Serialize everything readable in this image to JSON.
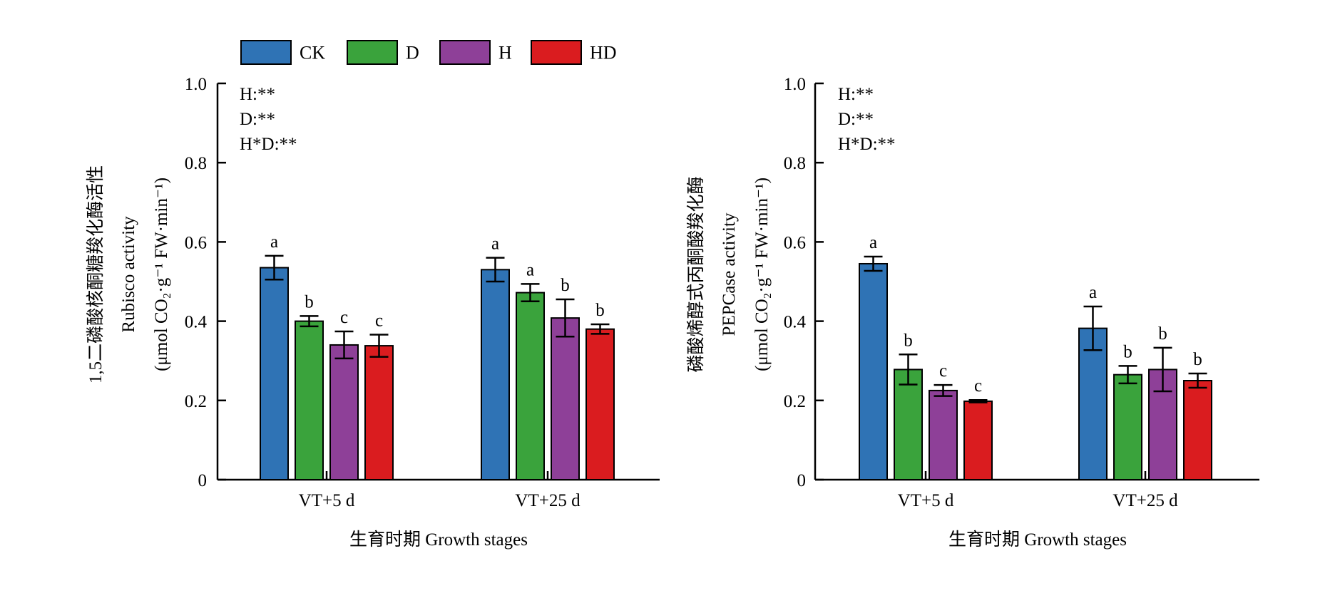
{
  "legend": {
    "items": [
      {
        "label": "CK",
        "color": "#2f73b5"
      },
      {
        "label": "D",
        "color": "#3aa33c"
      },
      {
        "label": "H",
        "color": "#8e4098"
      },
      {
        "label": "HD",
        "color": "#da1c1f"
      }
    ]
  },
  "chart_data": [
    {
      "type": "bar",
      "ylabel_lines": [
        "1,5二磷酸核酮糖羧化酶活性",
        "Rubisco activity",
        "(μmol CO₂·g⁻¹ FW·min⁻¹)"
      ],
      "xlabel": "生育时期 Growth stages",
      "ylim": [
        0,
        1.0
      ],
      "yticks": [
        "0",
        "0.2",
        "0.4",
        "0.6",
        "0.8",
        "1.0"
      ],
      "categories": [
        "VT+5 d",
        "VT+25 d"
      ],
      "annotations": [
        "H:**",
        "D:**",
        "H*D:**"
      ],
      "series": [
        {
          "name": "CK",
          "values": [
            0.535,
            0.53
          ],
          "errors": [
            0.03,
            0.03
          ],
          "letters": [
            "a",
            "a"
          ]
        },
        {
          "name": "D",
          "values": [
            0.4,
            0.472
          ],
          "errors": [
            0.013,
            0.022
          ],
          "letters": [
            "b",
            "a"
          ]
        },
        {
          "name": "H",
          "values": [
            0.34,
            0.408
          ],
          "errors": [
            0.034,
            0.047
          ],
          "letters": [
            "c",
            "b"
          ]
        },
        {
          "name": "HD",
          "values": [
            0.338,
            0.38
          ],
          "errors": [
            0.028,
            0.012
          ],
          "letters": [
            "c",
            "b"
          ]
        }
      ]
    },
    {
      "type": "bar",
      "ylabel_lines": [
        "磷酸烯醇式丙酮酸羧化酶",
        "PEPCase activity",
        "(μmol CO₂·g⁻¹ FW·min⁻¹)"
      ],
      "xlabel": "生育时期 Growth stages",
      "ylim": [
        0,
        1.0
      ],
      "yticks": [
        "0",
        "0.2",
        "0.4",
        "0.6",
        "0.8",
        "1.0"
      ],
      "categories": [
        "VT+5 d",
        "VT+25 d"
      ],
      "annotations": [
        "H:**",
        "D:**",
        "H*D:**"
      ],
      "series": [
        {
          "name": "CK",
          "values": [
            0.545,
            0.382
          ],
          "errors": [
            0.018,
            0.055
          ],
          "letters": [
            "a",
            "a"
          ]
        },
        {
          "name": "D",
          "values": [
            0.278,
            0.265
          ],
          "errors": [
            0.038,
            0.022
          ],
          "letters": [
            "b",
            "b"
          ]
        },
        {
          "name": "H",
          "values": [
            0.225,
            0.278
          ],
          "errors": [
            0.014,
            0.055
          ],
          "letters": [
            "c",
            "b"
          ]
        },
        {
          "name": "HD",
          "values": [
            0.198,
            0.25
          ],
          "errors": [
            0.003,
            0.018
          ],
          "letters": [
            "c",
            "b"
          ]
        }
      ]
    }
  ]
}
